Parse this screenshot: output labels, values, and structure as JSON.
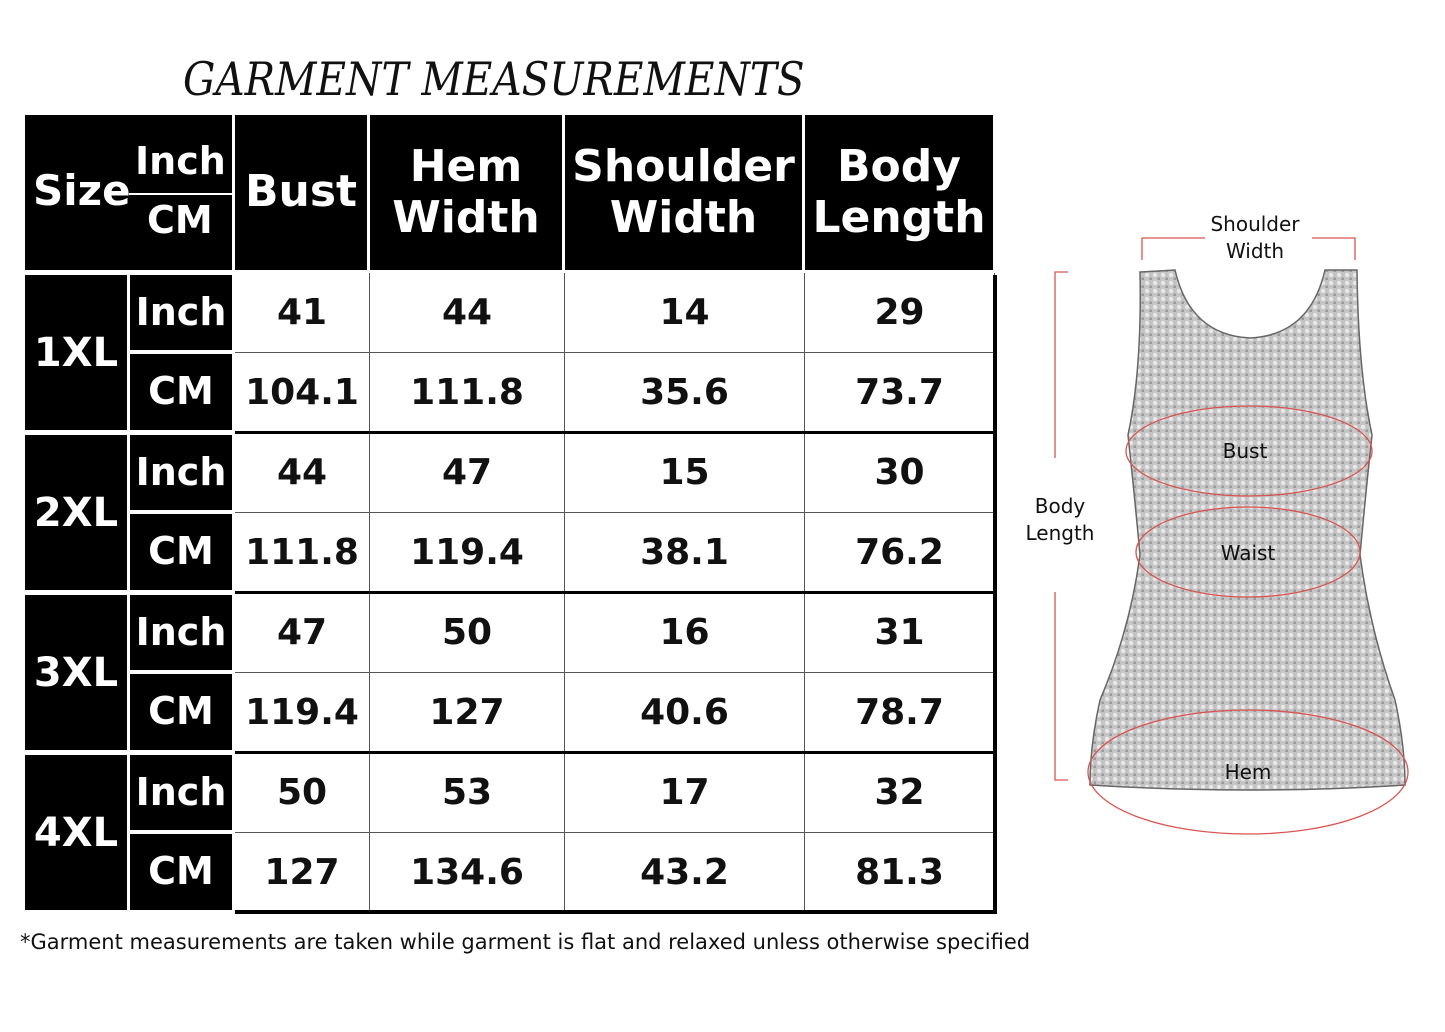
{
  "title": "GARMENT MEASUREMENTS",
  "header": {
    "size": "Size",
    "inch": "Inch",
    "cm": "CM",
    "columns": [
      {
        "line1": "Bust",
        "line2": ""
      },
      {
        "line1": "Hem",
        "line2": "Width"
      },
      {
        "line1": "Shoulder",
        "line2": "Width"
      },
      {
        "line1": "Body",
        "line2": "Length"
      }
    ]
  },
  "rows": [
    {
      "size": "1XL",
      "inch_label": "Inch",
      "cm_label": "CM",
      "inch": [
        "41",
        "44",
        "14",
        "29"
      ],
      "cm": [
        "104.1",
        "111.8",
        "35.6",
        "73.7"
      ]
    },
    {
      "size": "2XL",
      "inch_label": "Inch",
      "cm_label": "CM",
      "inch": [
        "44",
        "47",
        "15",
        "30"
      ],
      "cm": [
        "111.8",
        "119.4",
        "38.1",
        "76.2"
      ]
    },
    {
      "size": "3XL",
      "inch_label": "Inch",
      "cm_label": "CM",
      "inch": [
        "47",
        "50",
        "16",
        "31"
      ],
      "cm": [
        "119.4",
        "127",
        "40.6",
        "78.7"
      ]
    },
    {
      "size": "4XL",
      "inch_label": "Inch",
      "cm_label": "CM",
      "inch": [
        "50",
        "53",
        "17",
        "32"
      ],
      "cm": [
        "127",
        "134.6",
        "43.2",
        "81.3"
      ]
    }
  ],
  "footnote": "*Garment measurements are taken while garment is flat and relaxed unless otherwise specified",
  "diagram": {
    "shoulder_width": {
      "line1": "Shoulder",
      "line2": "Width"
    },
    "body_length": {
      "line1": "Body",
      "line2": "Length"
    },
    "bust": "Bust",
    "waist": "Waist",
    "hem": "Hem",
    "colors": {
      "measure_lines": "#d9534f",
      "garment": "#b8b8b8"
    }
  }
}
